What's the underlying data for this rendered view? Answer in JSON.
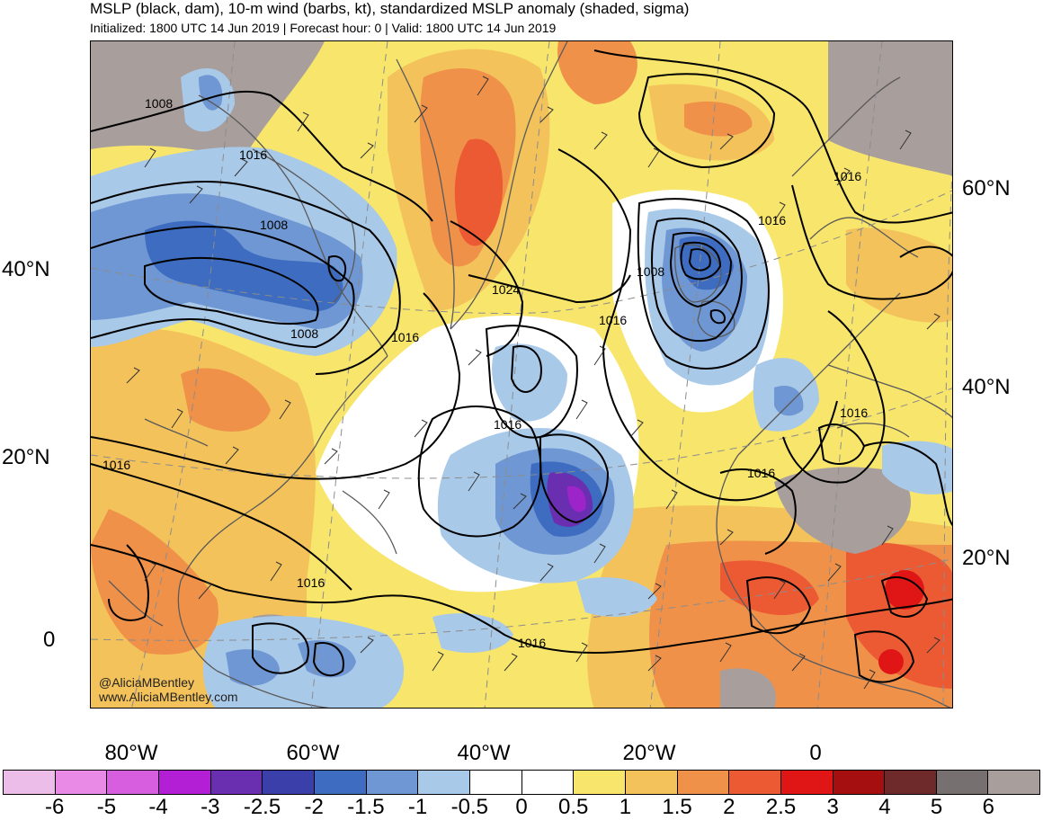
{
  "header": {
    "title": "MSLP (black, dam), 10-m wind (barbs, kt), standardized MSLP anomaly (shaded, sigma)",
    "subtitle": "Initialized: 1800 UTC 14 Jun 2019 | Forecast hour: 0 | Valid: 1800 UTC 14 Jun 2019"
  },
  "axes": {
    "left_lat_labels": [
      "40°N",
      "20°N",
      "0"
    ],
    "right_lat_labels": [
      "60°N",
      "40°N",
      "20°N"
    ],
    "lon_labels": [
      "80°W",
      "60°W",
      "40°W",
      "20°W",
      "0"
    ]
  },
  "contour_labels": {
    "c1": "1008",
    "c2": "1016",
    "c3": "1008",
    "c4": "1008",
    "c5": "1016",
    "c6": "1024",
    "c7": "1016",
    "c8": "1008",
    "c9": "1016",
    "c10": "1016",
    "c11": "1016",
    "c12": "1016",
    "c13": "1016",
    "c14": "1016",
    "c15": "1016",
    "c16": "1016"
  },
  "credits": {
    "twitter": "@AliciaMBentley",
    "website": "www.AliciaMBentley.com"
  },
  "colorbar": {
    "labels": [
      "-6",
      "-5",
      "-4",
      "-3",
      "-2.5",
      "-2",
      "-1.5",
      "-1",
      "-0.5",
      "0",
      "0.5",
      "1",
      "1.5",
      "2",
      "2.5",
      "3",
      "4",
      "5",
      "6"
    ],
    "colors": [
      "#ebbde8",
      "#e88ae6",
      "#d85ee0",
      "#b31fd4",
      "#6a2fb0",
      "#3b3faa",
      "#3d6cc0",
      "#6f97d3",
      "#a9c9e9",
      "#ffffff",
      "#ffffff",
      "#f8e56c",
      "#f3c25a",
      "#f0914a",
      "#ec5a34",
      "#e01616",
      "#a50f0f",
      "#6e2a2a",
      "#777070",
      "#a89e9c"
    ]
  }
}
